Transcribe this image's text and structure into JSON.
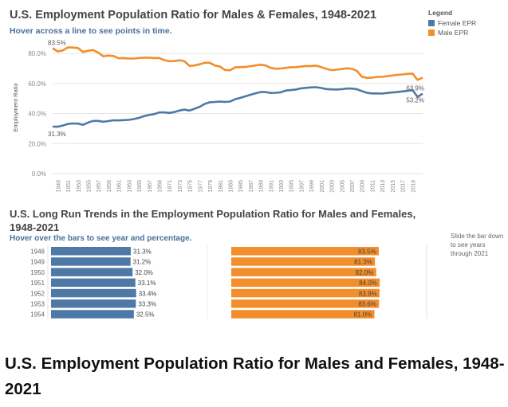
{
  "top_chart": {
    "title": "U.S. Employment Population Ratio for Males & Females, 1948-2021",
    "subtitle": "Hover across a line to see points in time.",
    "legend_title": "Legend",
    "y_axis_label": "Employment Ratio",
    "colors": {
      "female": "#4e79a7",
      "male": "#f28e2b"
    }
  },
  "bottom_chart": {
    "title": "U.S. Long Run Trends in the Employment Population Ratio for Males and Females, 1948-2021",
    "subtitle": "Hover over the bars to see year and percentage.",
    "slide_note": "Slide the bar down to see years through 2021"
  },
  "caption": "U.S. Employment Population Ratio for Males and Females, 1948-2021",
  "chart_data": [
    {
      "type": "line",
      "x": [
        1948,
        1949,
        1950,
        1951,
        1952,
        1953,
        1954,
        1955,
        1956,
        1957,
        1958,
        1959,
        1960,
        1961,
        1962,
        1963,
        1964,
        1965,
        1966,
        1967,
        1968,
        1969,
        1970,
        1971,
        1972,
        1973,
        1974,
        1975,
        1976,
        1977,
        1978,
        1979,
        1980,
        1981,
        1982,
        1983,
        1984,
        1985,
        1986,
        1987,
        1988,
        1989,
        1990,
        1991,
        1992,
        1993,
        1994,
        1995,
        1996,
        1997,
        1998,
        1999,
        2000,
        2001,
        2002,
        2003,
        2004,
        2005,
        2006,
        2007,
        2008,
        2009,
        2010,
        2011,
        2012,
        2013,
        2014,
        2015,
        2016,
        2017,
        2018,
        2019,
        2020,
        2021
      ],
      "x_tick_labels": [
        "1949",
        "1951",
        "1953",
        "1955",
        "1957",
        "1959",
        "1961",
        "1963",
        "1965",
        "1967",
        "1969",
        "1971",
        "1973",
        "1975",
        "1977",
        "1979",
        "1981",
        "1983",
        "1985",
        "1987",
        "1989",
        "1991",
        "1993",
        "1995",
        "1997",
        "1999",
        "2001",
        "2003",
        "2005",
        "2007",
        "2009",
        "2011",
        "2013",
        "2015",
        "2017",
        "2019"
      ],
      "y_tick_labels": [
        "0.0%",
        "20.0%",
        "40.0%",
        "60.0%",
        "80.0%"
      ],
      "ylim": [
        0,
        88
      ],
      "series": [
        {
          "name": "Female EPR",
          "color": "#4e79a7",
          "values": [
            31.3,
            31.2,
            32.0,
            33.1,
            33.4,
            33.3,
            32.5,
            34.0,
            35.1,
            35.1,
            34.5,
            35.0,
            35.5,
            35.4,
            35.6,
            35.8,
            36.3,
            37.1,
            38.3,
            39.0,
            39.6,
            40.7,
            40.8,
            40.4,
            41.0,
            42.0,
            42.6,
            42.0,
            43.2,
            44.5,
            46.4,
            47.5,
            47.7,
            48.0,
            47.7,
            48.0,
            49.5,
            50.4,
            51.4,
            52.5,
            53.4,
            54.3,
            54.3,
            53.7,
            53.8,
            54.1,
            55.3,
            55.6,
            56.0,
            56.8,
            57.1,
            57.4,
            57.5,
            57.0,
            56.3,
            56.1,
            56.0,
            56.2,
            56.6,
            56.6,
            56.2,
            55.0,
            53.8,
            53.4,
            53.4,
            53.3,
            53.7,
            54.0,
            54.3,
            54.7,
            55.1,
            55.6,
            51.1,
            53.2
          ]
        },
        {
          "name": "Male EPR",
          "color": "#f28e2b",
          "values": [
            83.5,
            81.3,
            82.0,
            84.0,
            83.9,
            83.6,
            81.0,
            81.8,
            82.3,
            80.5,
            78.1,
            78.6,
            78.3,
            76.8,
            76.9,
            76.6,
            76.6,
            77.0,
            77.2,
            77.2,
            76.9,
            77.0,
            75.6,
            74.8,
            74.9,
            75.5,
            74.8,
            71.7,
            72.0,
            72.8,
            73.8,
            73.8,
            72.0,
            71.3,
            69.0,
            68.8,
            70.7,
            70.9,
            71.0,
            71.5,
            72.0,
            72.5,
            72.0,
            70.4,
            69.8,
            70.0,
            70.4,
            70.8,
            70.9,
            71.3,
            71.6,
            71.6,
            71.9,
            70.9,
            69.7,
            68.9,
            69.2,
            69.6,
            70.1,
            69.8,
            68.5,
            64.5,
            63.7,
            63.9,
            64.4,
            64.4,
            64.9,
            65.3,
            65.8,
            66.0,
            66.4,
            66.6,
            62.4,
            63.9
          ]
        }
      ],
      "annotations": [
        {
          "label": "83.5%",
          "series": "Male EPR",
          "x": 1948,
          "y": 83.5
        },
        {
          "label": "31.3%",
          "series": "Female EPR",
          "x": 1948,
          "y": 31.3
        },
        {
          "label": "63.9%",
          "series": "Male EPR",
          "x": 2021,
          "y": 63.9
        },
        {
          "label": "53.2%",
          "series": "Female EPR",
          "x": 2021,
          "y": 53.2
        }
      ],
      "grid": true,
      "legend_position": "top-right"
    },
    {
      "type": "bar",
      "orientation": "horizontal",
      "categories": [
        "1948",
        "1949",
        "1950",
        "1951",
        "1952",
        "1953",
        "1954"
      ],
      "series": [
        {
          "color": "#4e79a7",
          "values": [
            31.3,
            31.2,
            32.0,
            33.1,
            33.4,
            33.3,
            32.5
          ],
          "labels": [
            "31.3%",
            "31.2%",
            "32.0%",
            "33.1%",
            "33.4%",
            "33.3%",
            "32.5%"
          ]
        },
        {
          "color": "#f28e2b",
          "values": [
            83.5,
            81.3,
            82.0,
            84.0,
            83.9,
            83.6,
            81.0
          ],
          "labels": [
            "83.5%",
            "81.3%",
            "82.0%",
            "84.0%",
            "83.9%",
            "83.6%",
            "81.0%"
          ]
        }
      ]
    }
  ]
}
